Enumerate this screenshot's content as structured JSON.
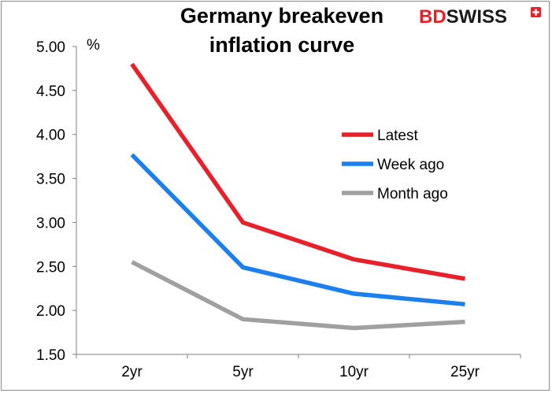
{
  "chart_data": {
    "type": "line",
    "title_lines": [
      "Germany breakeven",
      "inflation curve"
    ],
    "unit_label": "%",
    "categories": [
      "2yr",
      "5yr",
      "10yr",
      "25yr"
    ],
    "y_ticks": [
      "5.00",
      "4.50",
      "4.00",
      "3.50",
      "3.00",
      "2.50",
      "2.00",
      "1.50"
    ],
    "ylim": [
      1.5,
      5.0
    ],
    "y_step": 0.5,
    "grid": false,
    "legend_position": "right",
    "series": [
      {
        "name": "Latest",
        "color": "#e8202a",
        "values": [
          4.8,
          3.0,
          2.58,
          2.36
        ]
      },
      {
        "name": "Week ago",
        "color": "#1b7fef",
        "values": [
          3.77,
          2.49,
          2.19,
          2.07
        ]
      },
      {
        "name": "Month ago",
        "color": "#a0a0a0",
        "values": [
          2.55,
          1.9,
          1.8,
          1.87
        ]
      }
    ]
  },
  "logo": {
    "bd": "BD",
    "swiss": "SWISS",
    "bd_color": "#e8202a",
    "swiss_color": "#1a1a1a",
    "badge_color": "#e8202a",
    "badge_icon": "swiss-cross-icon"
  }
}
